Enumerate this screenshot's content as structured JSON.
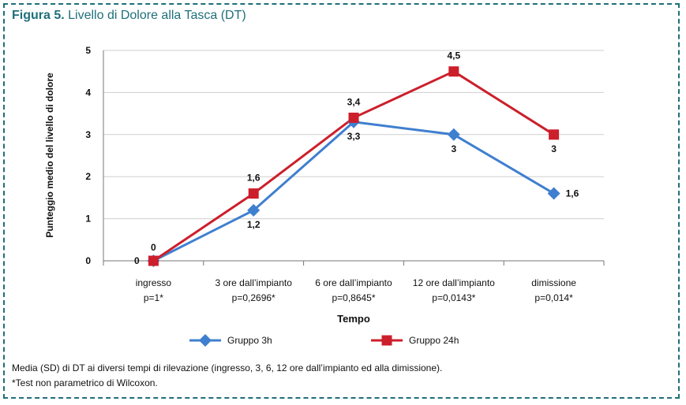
{
  "figure": {
    "number_label": "Figura 5.",
    "title": "Livello di Dolore alla Tasca (DT)"
  },
  "notes": {
    "line1": "Media (SD) di DT ai diversi tempi di rilevazione (ingresso, 3, 6, 12 ore dall’impianto ed alla dimissione).",
    "line2": "*Test non parametrico di Wilcoxon."
  },
  "chart_data": {
    "type": "line",
    "title": "Livello di Dolore alla Tasca (DT)",
    "xlabel": "Tempo",
    "ylabel": "Punteggio medio del livello di dolore",
    "ylim": [
      0,
      5
    ],
    "yticks": [
      "0",
      "1",
      "2",
      "3",
      "4",
      "5"
    ],
    "grid": "horizontal",
    "legend": "bottom",
    "categories": [
      {
        "name": "ingresso",
        "pvalue": "p=1*"
      },
      {
        "name": "3 ore dall’impianto",
        "pvalue": "p=0,2696*"
      },
      {
        "name": "6 ore dall’impianto",
        "pvalue": "p=0,8645*"
      },
      {
        "name": "12 ore dall’impianto",
        "pvalue": "p=0,0143*"
      },
      {
        "name": "dimissione",
        "pvalue": "p=0,014*"
      }
    ],
    "series": [
      {
        "name": "Gruppo 3h",
        "color": "#3f7fcf",
        "marker": "diamond",
        "values": [
          0,
          1.2,
          3.3,
          3,
          1.6
        ],
        "labels": [
          "0",
          "1,2",
          "3,3",
          "3",
          "1,6"
        ]
      },
      {
        "name": "Gruppo 24h",
        "color": "#cc1f2b",
        "marker": "square",
        "values": [
          0,
          1.6,
          3.4,
          4.5,
          3
        ],
        "labels": [
          "0",
          "1,6",
          "3,4",
          "4,5",
          "3"
        ]
      }
    ]
  }
}
